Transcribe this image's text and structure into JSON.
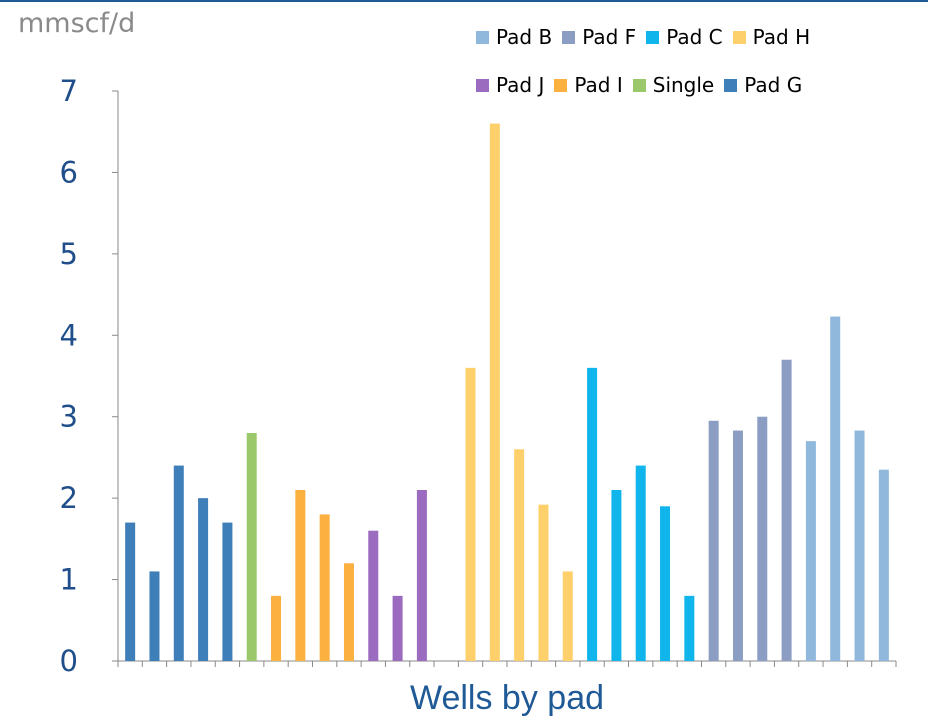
{
  "chart_data": {
    "type": "bar",
    "unit_label": "mmscf/d",
    "xlabel": "Wells by pad",
    "ylim": [
      0,
      7
    ],
    "yticks": [
      "0",
      "1",
      "2",
      "3",
      "4",
      "5",
      "6",
      "7"
    ],
    "grid": false,
    "legend_position": "top-right",
    "series": [
      {
        "name": "Pad B",
        "color": "#8fb8dc"
      },
      {
        "name": "Pad F",
        "color": "#8b9dc3"
      },
      {
        "name": "Pad C",
        "color": "#10b5ec"
      },
      {
        "name": "Pad H",
        "color": "#fdd06b"
      },
      {
        "name": "Pad J",
        "color": "#9b6bbf"
      },
      {
        "name": "Pad I",
        "color": "#fbb03f"
      },
      {
        "name": "Single",
        "color": "#9bc86a"
      },
      {
        "name": "Pad G",
        "color": "#3e7fba"
      }
    ],
    "bars": [
      {
        "series": "Pad G",
        "value": 1.7
      },
      {
        "series": "Pad G",
        "value": 1.1
      },
      {
        "series": "Pad G",
        "value": 2.4
      },
      {
        "series": "Pad G",
        "value": 2.0
      },
      {
        "series": "Pad G",
        "value": 1.7
      },
      {
        "series": "Single",
        "value": 2.8
      },
      {
        "series": "Pad I",
        "value": 0.8
      },
      {
        "series": "Pad I",
        "value": 2.1
      },
      {
        "series": "Pad I",
        "value": 1.8
      },
      {
        "series": "Pad I",
        "value": 1.2
      },
      {
        "series": "Pad J",
        "value": 1.6
      },
      {
        "series": "Pad J",
        "value": 0.8
      },
      {
        "series": "Pad J",
        "value": 2.1
      },
      {
        "series": "",
        "value": 0
      },
      {
        "series": "Pad H",
        "value": 3.6
      },
      {
        "series": "Pad H",
        "value": 6.6
      },
      {
        "series": "Pad H",
        "value": 2.6
      },
      {
        "series": "Pad H",
        "value": 1.92
      },
      {
        "series": "Pad H",
        "value": 1.1
      },
      {
        "series": "Pad C",
        "value": 3.6
      },
      {
        "series": "Pad C",
        "value": 2.1
      },
      {
        "series": "Pad C",
        "value": 2.4
      },
      {
        "series": "Pad C",
        "value": 1.9
      },
      {
        "series": "Pad C",
        "value": 0.8
      },
      {
        "series": "Pad F",
        "value": 2.95
      },
      {
        "series": "Pad F",
        "value": 2.83
      },
      {
        "series": "Pad F",
        "value": 3.0
      },
      {
        "series": "Pad F",
        "value": 3.7
      },
      {
        "series": "Pad B",
        "value": 2.7
      },
      {
        "series": "Pad B",
        "value": 4.23
      },
      {
        "series": "Pad B",
        "value": 2.83
      },
      {
        "series": "Pad B",
        "value": 2.35
      }
    ]
  }
}
